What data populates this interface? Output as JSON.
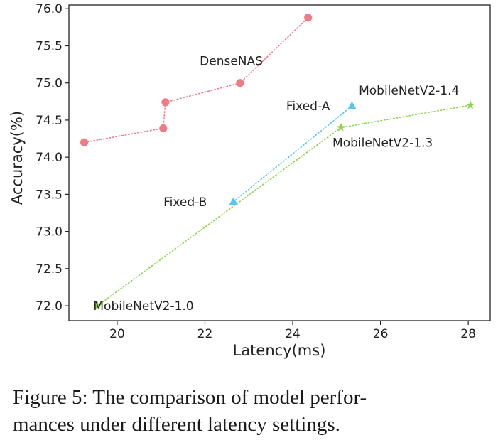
{
  "chart_data": {
    "type": "scatter",
    "xlabel": "Latency(ms)",
    "ylabel": "Accuracy(%)",
    "xlim": [
      18.9,
      28.5
    ],
    "ylim": [
      71.8,
      76.05
    ],
    "xticks": [
      20,
      22,
      24,
      26,
      28
    ],
    "yticks": [
      72.0,
      72.5,
      73.0,
      73.5,
      74.0,
      74.5,
      75.0,
      75.5,
      76.0
    ],
    "series": [
      {
        "name": "DenseNAS",
        "marker": "circle",
        "color": "#f07b86",
        "points": [
          {
            "x": 19.25,
            "y": 74.2
          },
          {
            "x": 21.05,
            "y": 74.39
          },
          {
            "x": 21.1,
            "y": 74.74
          },
          {
            "x": 22.8,
            "y": 75.0
          },
          {
            "x": 24.35,
            "y": 75.88
          }
        ]
      },
      {
        "name": "Fixed",
        "marker": "triangle",
        "color": "#56c6ee",
        "points": [
          {
            "x": 22.65,
            "y": 73.4,
            "label": "Fixed-B"
          },
          {
            "x": 25.35,
            "y": 74.69,
            "label": "Fixed-A"
          }
        ]
      },
      {
        "name": "MobileNetV2",
        "marker": "star",
        "color": "#8cd44a",
        "points": [
          {
            "x": 19.55,
            "y": 72.0,
            "label": "MobileNetV2-1.0"
          },
          {
            "x": 25.1,
            "y": 74.4,
            "label": "MobileNetV2-1.3"
          },
          {
            "x": 28.05,
            "y": 74.7,
            "label": "MobileNetV2-1.4"
          }
        ]
      }
    ],
    "annotations": [
      {
        "text": "DenseNAS",
        "x": 22.6,
        "y": 75.3
      },
      {
        "text": "Fixed-A",
        "x": 24.35,
        "y": 74.69
      },
      {
        "text": "Fixed-B",
        "x": 21.55,
        "y": 73.4
      },
      {
        "text": "MobileNetV2-1.0",
        "x": 20.6,
        "y": 72.0
      },
      {
        "text": "MobileNetV2-1.3",
        "x": 26.05,
        "y": 74.2
      },
      {
        "text": "MobileNetV2-1.4",
        "x": 26.65,
        "y": 74.9
      }
    ]
  },
  "caption": {
    "line1": "Figure 5:  The comparison of model perfor-",
    "line2": "mances under different latency settings."
  }
}
